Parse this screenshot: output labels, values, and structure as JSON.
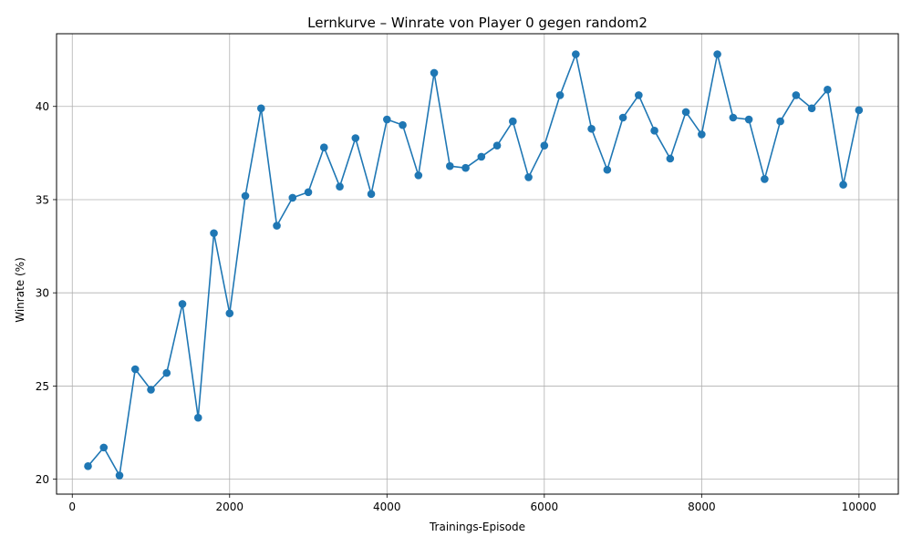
{
  "chart_data": {
    "type": "line",
    "title": "Lernkurve – Winrate von Player 0 gegen random2",
    "xlabel": "Trainings-Episode",
    "ylabel": "Winrate (%)",
    "xlim": [
      -200,
      10500
    ],
    "ylim": [
      19.2,
      43.9
    ],
    "xticks": [
      0,
      2000,
      4000,
      6000,
      8000,
      10000
    ],
    "yticks": [
      20,
      25,
      30,
      35,
      40
    ],
    "grid": true,
    "colors": {
      "line": "#1f77b4",
      "grid": "#b0b0b0",
      "axis": "#000000"
    },
    "series": [
      {
        "x": [
          200,
          400,
          600,
          800,
          1000,
          1200,
          1400,
          1600,
          1800,
          2000,
          2200,
          2400,
          2600,
          2800,
          3000,
          3200,
          3400,
          3600,
          3800,
          4000,
          4200,
          4400,
          4600,
          4800,
          5000,
          5200,
          5400,
          5600,
          5800,
          6000,
          6200,
          6400,
          6600,
          6800,
          7000,
          7200,
          7400,
          7600,
          7800,
          8000,
          8200,
          8400,
          8600,
          8800,
          9000,
          9200,
          9400,
          9600,
          9800,
          10000
        ],
        "values": [
          20.7,
          21.7,
          20.2,
          25.9,
          24.8,
          25.7,
          29.4,
          23.3,
          33.2,
          28.9,
          35.2,
          39.9,
          33.6,
          35.1,
          35.4,
          37.8,
          35.7,
          38.3,
          35.3,
          39.3,
          39.0,
          36.3,
          41.8,
          36.8,
          36.7,
          37.3,
          37.9,
          39.2,
          36.2,
          37.9,
          40.6,
          42.8,
          38.8,
          36.6,
          39.4,
          40.6,
          38.7,
          37.2,
          39.7,
          38.5,
          42.8,
          39.4,
          39.3,
          36.1,
          39.2,
          40.6,
          39.9,
          40.9,
          35.8,
          39.8
        ]
      }
    ]
  }
}
